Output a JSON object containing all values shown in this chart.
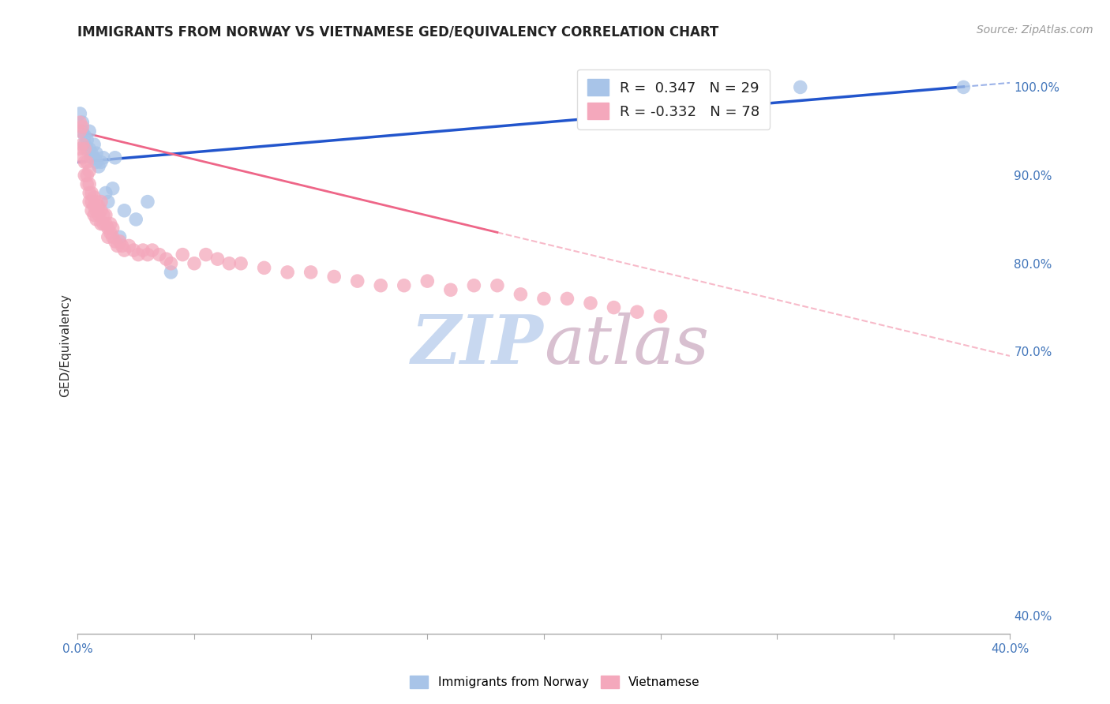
{
  "title": "IMMIGRANTS FROM NORWAY VS VIETNAMESE GED/EQUIVALENCY CORRELATION CHART",
  "source": "Source: ZipAtlas.com",
  "ylabel": "GED/Equivalency",
  "right_yticks": [
    "100.0%",
    "90.0%",
    "80.0%",
    "70.0%",
    "40.0%"
  ],
  "right_ytick_vals": [
    1.0,
    0.9,
    0.8,
    0.7,
    0.4
  ],
  "legend_blue_label": "R =  0.347   N = 29",
  "legend_pink_label": "R = -0.332   N = 78",
  "legend_bottom_blue": "Immigrants from Norway",
  "legend_bottom_pink": "Vietnamese",
  "blue_color": "#a8c4e8",
  "pink_color": "#f4a8bc",
  "trend_blue_color": "#2255cc",
  "trend_pink_color": "#ee6688",
  "watermark_zip_color": "#c8d8f0",
  "watermark_atlas_color": "#d8c0d0",
  "background_color": "#ffffff",
  "grid_color": "#e0e0e0",
  "xmin": 0.0,
  "xmax": 0.4,
  "ymin": 0.38,
  "ymax": 1.035,
  "norway_x": [
    0.001,
    0.002,
    0.002,
    0.003,
    0.003,
    0.004,
    0.004,
    0.005,
    0.005,
    0.006,
    0.006,
    0.007,
    0.007,
    0.008,
    0.008,
    0.009,
    0.01,
    0.011,
    0.012,
    0.013,
    0.015,
    0.016,
    0.018,
    0.02,
    0.025,
    0.03,
    0.04,
    0.31,
    0.38
  ],
  "norway_y": [
    0.97,
    0.96,
    0.95,
    0.945,
    0.935,
    0.94,
    0.93,
    0.93,
    0.95,
    0.925,
    0.92,
    0.935,
    0.92,
    0.925,
    0.915,
    0.91,
    0.915,
    0.92,
    0.88,
    0.87,
    0.885,
    0.92,
    0.83,
    0.86,
    0.85,
    0.87,
    0.79,
    1.0,
    1.0
  ],
  "viet_x": [
    0.001,
    0.001,
    0.001,
    0.002,
    0.002,
    0.002,
    0.003,
    0.003,
    0.003,
    0.004,
    0.004,
    0.004,
    0.005,
    0.005,
    0.005,
    0.005,
    0.006,
    0.006,
    0.006,
    0.007,
    0.007,
    0.007,
    0.008,
    0.008,
    0.008,
    0.009,
    0.009,
    0.01,
    0.01,
    0.01,
    0.011,
    0.011,
    0.012,
    0.012,
    0.013,
    0.013,
    0.014,
    0.014,
    0.015,
    0.015,
    0.016,
    0.017,
    0.018,
    0.019,
    0.02,
    0.022,
    0.024,
    0.026,
    0.028,
    0.03,
    0.032,
    0.035,
    0.038,
    0.04,
    0.045,
    0.05,
    0.055,
    0.06,
    0.065,
    0.07,
    0.08,
    0.09,
    0.1,
    0.11,
    0.12,
    0.13,
    0.14,
    0.15,
    0.16,
    0.17,
    0.18,
    0.19,
    0.2,
    0.21,
    0.22,
    0.23,
    0.24,
    0.25
  ],
  "viet_y": [
    0.96,
    0.95,
    0.93,
    0.955,
    0.935,
    0.92,
    0.93,
    0.915,
    0.9,
    0.915,
    0.9,
    0.89,
    0.905,
    0.89,
    0.88,
    0.87,
    0.88,
    0.87,
    0.86,
    0.875,
    0.865,
    0.855,
    0.87,
    0.86,
    0.85,
    0.865,
    0.855,
    0.87,
    0.86,
    0.845,
    0.855,
    0.845,
    0.855,
    0.845,
    0.84,
    0.83,
    0.845,
    0.835,
    0.84,
    0.83,
    0.825,
    0.82,
    0.825,
    0.82,
    0.815,
    0.82,
    0.815,
    0.81,
    0.815,
    0.81,
    0.815,
    0.81,
    0.805,
    0.8,
    0.81,
    0.8,
    0.81,
    0.805,
    0.8,
    0.8,
    0.795,
    0.79,
    0.79,
    0.785,
    0.78,
    0.775,
    0.775,
    0.78,
    0.77,
    0.775,
    0.775,
    0.765,
    0.76,
    0.76,
    0.755,
    0.75,
    0.745,
    0.74
  ],
  "blue_trend_x0": 0.0,
  "blue_trend_y0": 0.915,
  "blue_trend_x1": 0.4,
  "blue_trend_y1": 1.005,
  "pink_trend_x0": 0.0,
  "pink_trend_y0": 0.95,
  "pink_trend_x1": 0.4,
  "pink_trend_y1": 0.695,
  "pink_solid_xend": 0.18,
  "pink_dash_xend": 0.4,
  "blue_solid_xend": 0.38,
  "blue_dash_xend": 0.4
}
